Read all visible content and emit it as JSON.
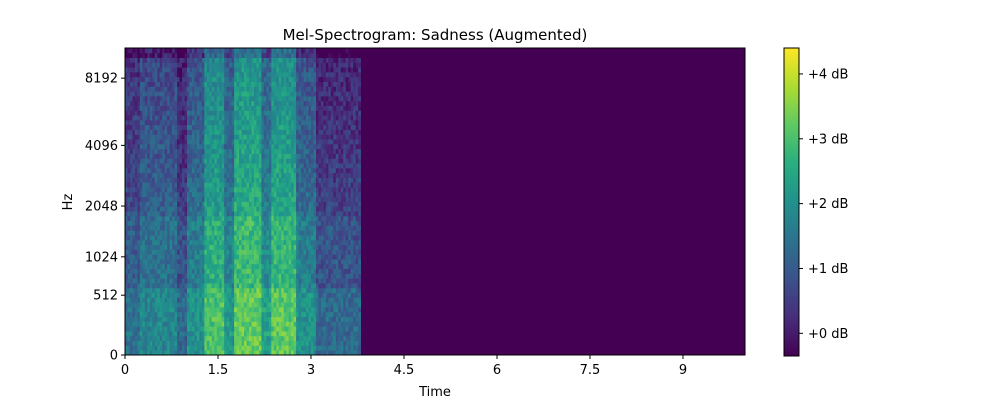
{
  "chart_data": {
    "type": "heatmap",
    "title": "Mel-Spectrogram: Sadness (Augmented)",
    "xlabel": "Time",
    "ylabel": "Hz",
    "x_ticks": [
      0,
      1.5,
      3,
      4.5,
      6,
      7.5,
      9
    ],
    "x_tick_labels": [
      "0",
      "1.5",
      "3",
      "4.5",
      "6",
      "7.5",
      "9"
    ],
    "xlim": [
      0,
      10
    ],
    "y_scale": "mel",
    "y_ticks": [
      0,
      512,
      1024,
      2048,
      4096,
      8192
    ],
    "y_tick_labels": [
      "0",
      "512",
      "1024",
      "2048",
      "4096",
      "8192"
    ],
    "ylim_hz": [
      0,
      11025
    ],
    "signal_end_time": 3.8,
    "colormap": "viridis",
    "colorbar": {
      "range": [
        -0.35,
        4.4
      ],
      "ticks": [
        0,
        1,
        2,
        3,
        4
      ],
      "tick_labels": [
        "+0 dB",
        "+1 dB",
        "+2 dB",
        "+3 dB",
        "+4 dB"
      ],
      "label_position": "right"
    },
    "energy_regions": [
      {
        "t_start": 0.0,
        "t_end": 0.25,
        "level": 1.2
      },
      {
        "t_start": 0.25,
        "t_end": 0.85,
        "level": 1.7
      },
      {
        "t_start": 0.85,
        "t_end": 1.0,
        "level": 0.9
      },
      {
        "t_start": 1.0,
        "t_end": 1.3,
        "level": 2.0
      },
      {
        "t_start": 1.3,
        "t_end": 1.6,
        "level": 3.3
      },
      {
        "t_start": 1.6,
        "t_end": 1.75,
        "level": 2.2
      },
      {
        "t_start": 1.75,
        "t_end": 2.2,
        "level": 3.6
      },
      {
        "t_start": 2.2,
        "t_end": 2.35,
        "level": 2.4
      },
      {
        "t_start": 2.35,
        "t_end": 2.75,
        "level": 3.5
      },
      {
        "t_start": 2.75,
        "t_end": 3.1,
        "level": 2.0
      },
      {
        "t_start": 3.1,
        "t_end": 3.8,
        "level": 1.0
      }
    ],
    "silence_level": -0.35
  }
}
